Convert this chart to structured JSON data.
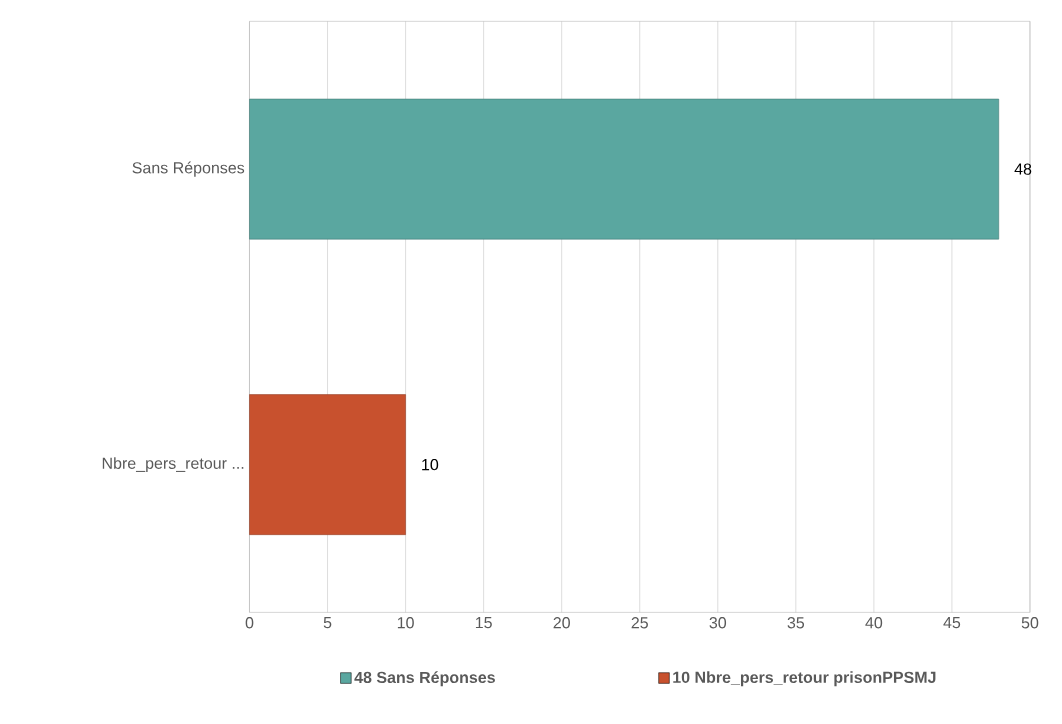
{
  "chart_data": {
    "type": "bar",
    "orientation": "horizontal",
    "categories": [
      "Sans Réponses",
      "Nbre_pers_retour ..."
    ],
    "series": [
      {
        "name": "48 Sans Réponses",
        "color": "#5aa7a0",
        "values": [
          48,
          null
        ]
      },
      {
        "name": "10 Nbre_pers_retour prisonPPSMJ",
        "color": "#c8512e",
        "values": [
          null,
          10
        ]
      }
    ],
    "xlim": [
      0,
      50
    ],
    "xticks": [
      0,
      5,
      10,
      15,
      20,
      25,
      30,
      35,
      40,
      45,
      50
    ],
    "grid": "x",
    "legend": "bottom",
    "data_labels": true
  }
}
